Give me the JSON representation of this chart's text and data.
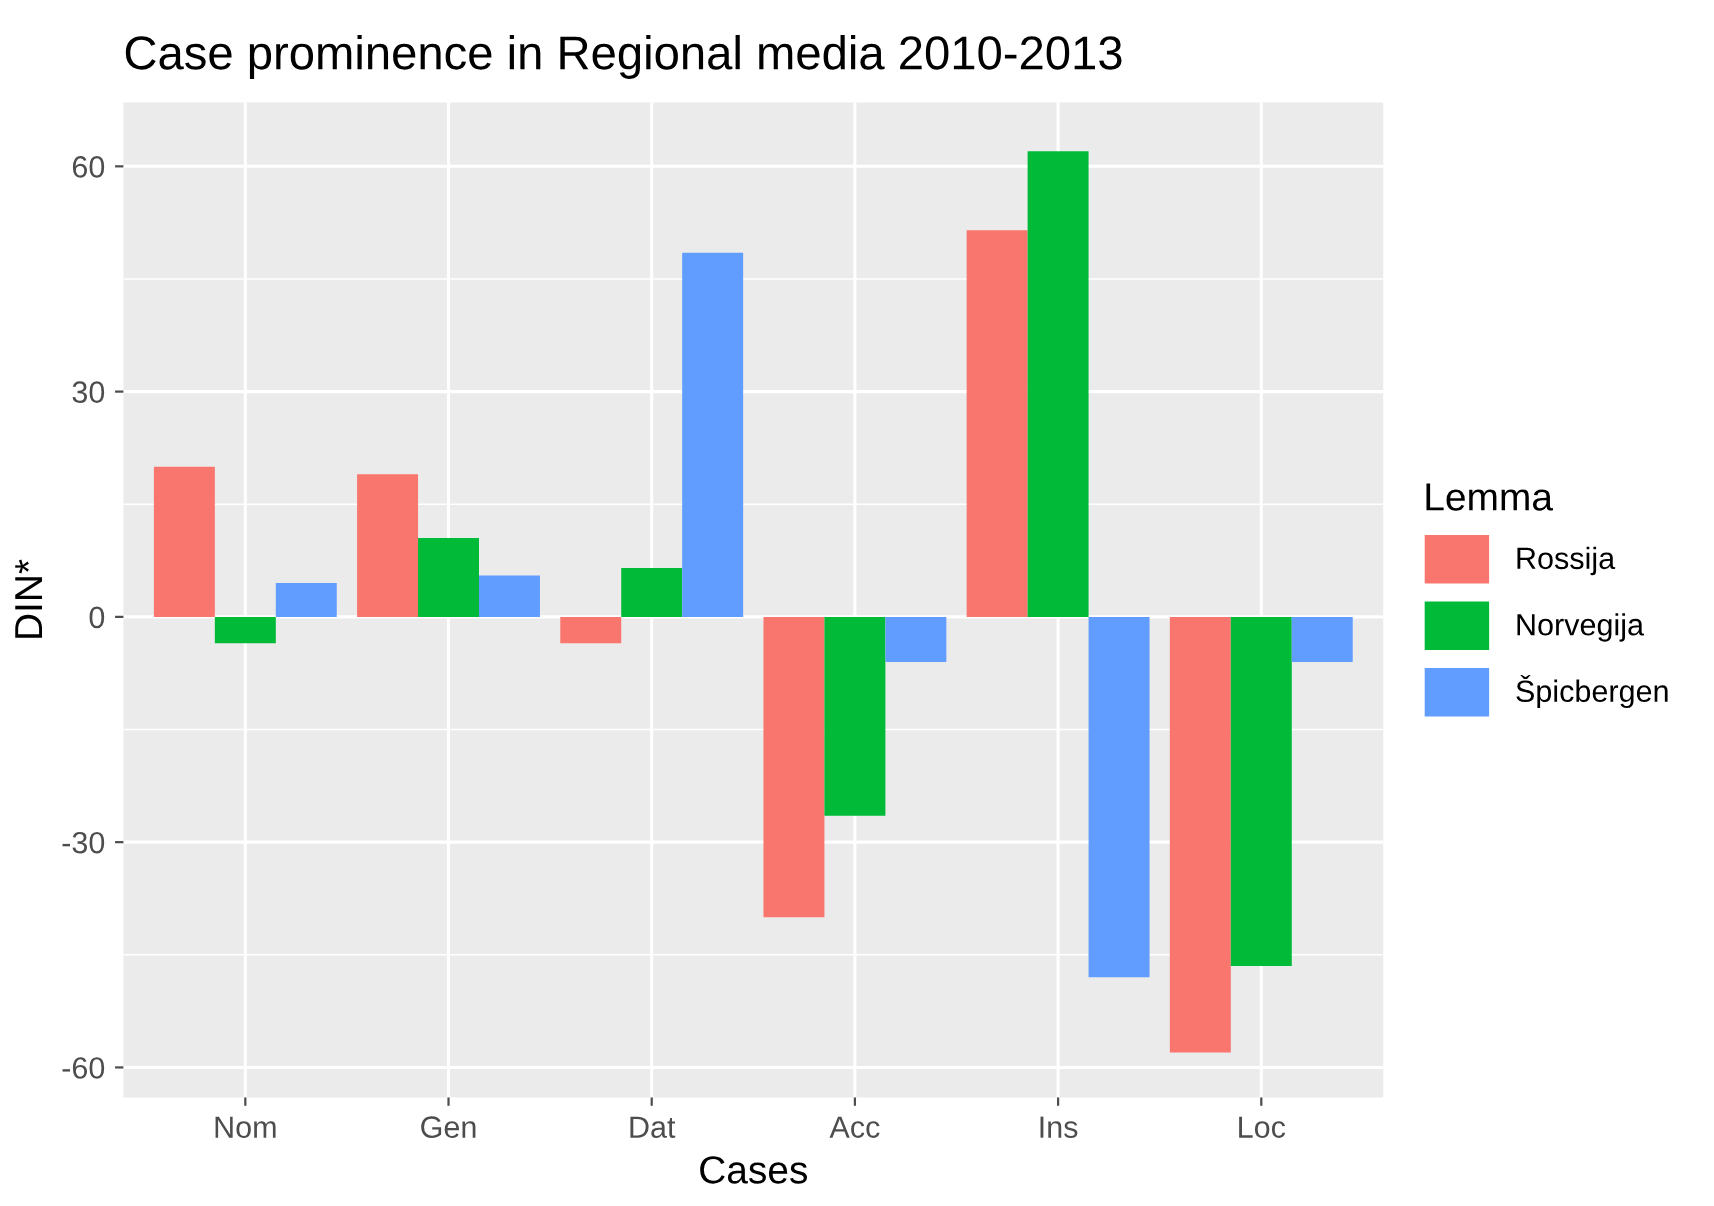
{
  "chart_data": {
    "type": "bar",
    "title": "Case prominence in Regional media 2010-2013",
    "xlabel": "Cases",
    "ylabel": "DIN*",
    "legend_title": "Lemma",
    "categories": [
      "Nom",
      "Gen",
      "Dat",
      "Acc",
      "Ins",
      "Loc"
    ],
    "series": [
      {
        "name": "Rossija",
        "color": "#f8766d",
        "values": [
          20,
          19,
          -3.5,
          -40,
          51.5,
          -58
        ]
      },
      {
        "name": "Norvegija",
        "color": "#00ba38",
        "values": [
          -3.5,
          10.5,
          6.5,
          -26.5,
          62,
          -46.5
        ]
      },
      {
        "name": "Špicbergen",
        "color": "#619cff",
        "values": [
          4.5,
          5.5,
          48.5,
          -6,
          -48,
          -6
        ]
      }
    ],
    "ylim": [
      -64,
      68.5
    ],
    "yticks": [
      -60,
      -30,
      0,
      30,
      60
    ],
    "grid": true,
    "legend": "right"
  }
}
